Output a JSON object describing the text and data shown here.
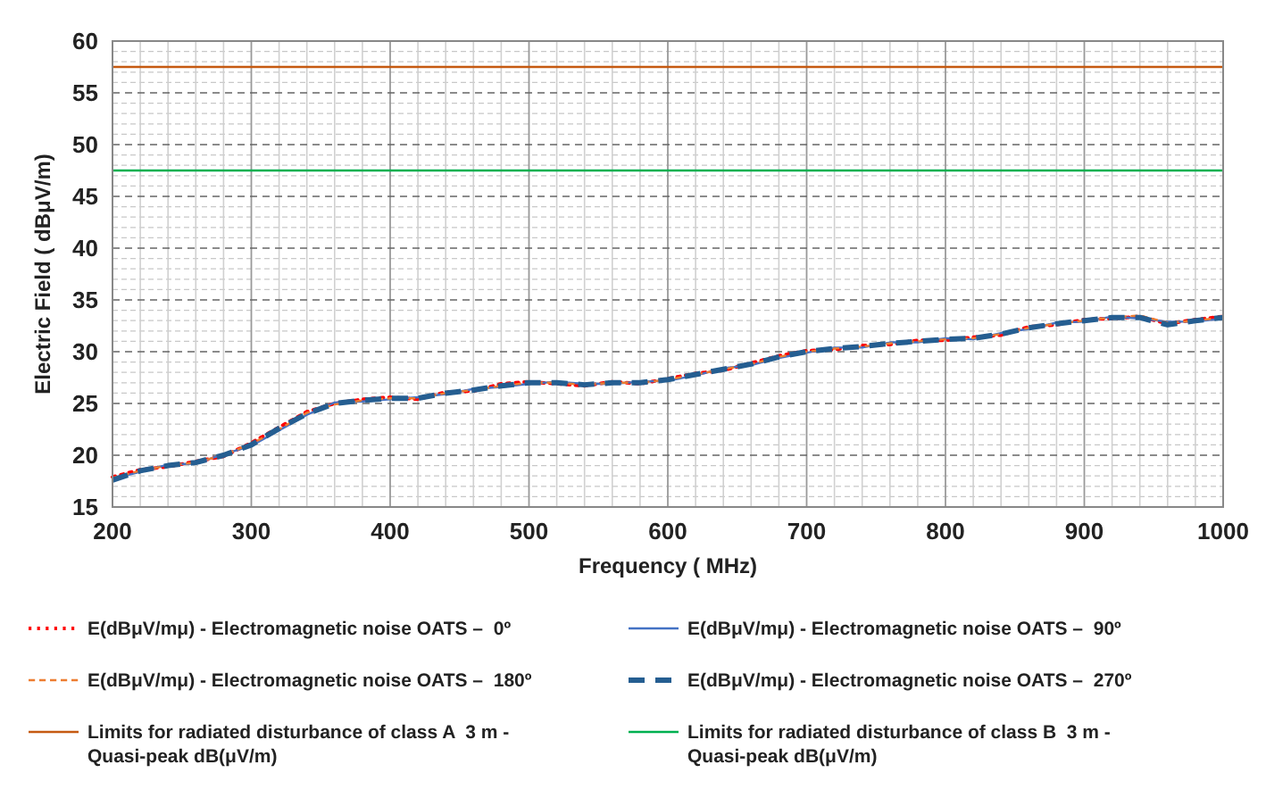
{
  "chart_data": {
    "type": "line",
    "xlabel": "Frequency ( MHz)",
    "ylabel": "Electric Field ( dBμV/m)",
    "x": [
      200,
      220,
      240,
      260,
      280,
      300,
      320,
      340,
      360,
      380,
      400,
      420,
      440,
      460,
      480,
      500,
      520,
      540,
      560,
      580,
      600,
      620,
      640,
      660,
      680,
      700,
      720,
      740,
      760,
      780,
      800,
      820,
      840,
      860,
      880,
      900,
      920,
      940,
      960,
      980,
      1000
    ],
    "xlim": [
      200,
      1000
    ],
    "ylim": [
      15,
      60
    ],
    "xticks": [
      200,
      300,
      400,
      500,
      600,
      700,
      800,
      900,
      1000
    ],
    "yticks": [
      15,
      20,
      25,
      30,
      35,
      40,
      45,
      50,
      55,
      60
    ],
    "grid": true,
    "legend": "bottom",
    "series": [
      {
        "name": "E(dBμV/mμ) - Electromagnetic noise OATS –  0º",
        "color": "#ff0000",
        "line_style": "dotted",
        "values": [
          17.9,
          18.6,
          18.9,
          19.4,
          19.9,
          21.2,
          22.7,
          24.2,
          25.0,
          25.4,
          25.6,
          25.4,
          26.1,
          26.2,
          26.9,
          27.1,
          26.9,
          26.7,
          27.1,
          26.9,
          27.4,
          27.9,
          28.2,
          28.9,
          29.6,
          30.1,
          30.2,
          30.6,
          30.7,
          31.1,
          31.1,
          31.4,
          31.6,
          32.4,
          32.6,
          33.1,
          33.2,
          33.4,
          32.7,
          33.1,
          33.4
        ]
      },
      {
        "name": "E(dBμV/mμ) - Electromagnetic noise OATS –  90º",
        "color": "#4472c4",
        "line_style": "solid",
        "values": [
          17.7,
          18.4,
          19.1,
          19.2,
          20.1,
          20.9,
          22.4,
          23.9,
          25.1,
          25.2,
          25.4,
          25.6,
          25.9,
          26.4,
          26.6,
          26.9,
          27.1,
          26.9,
          26.9,
          27.1,
          27.2,
          27.7,
          28.4,
          28.7,
          29.4,
          29.9,
          30.4,
          30.4,
          30.9,
          30.9,
          31.3,
          31.2,
          31.8,
          32.2,
          32.8,
          32.9,
          33.4,
          33.2,
          32.9,
          32.9,
          33.2
        ]
      },
      {
        "name": "E(dBμV/mμ) - Electromagnetic noise OATS –  180º",
        "color": "#ed7d31",
        "line_style": "dashed",
        "values": [
          17.8,
          18.5,
          19.0,
          19.3,
          20.0,
          21.1,
          22.5,
          24.1,
          24.9,
          25.3,
          25.5,
          25.5,
          26.0,
          26.3,
          26.7,
          27.0,
          27.0,
          26.8,
          27.0,
          27.0,
          27.3,
          27.8,
          28.3,
          28.8,
          29.5,
          30.0,
          30.3,
          30.5,
          30.8,
          31.0,
          31.2,
          31.3,
          31.7,
          32.3,
          32.7,
          33.0,
          33.3,
          33.5,
          32.8,
          33.0,
          33.3
        ]
      },
      {
        "name": "E(dBμV/mμ) - Electromagnetic noise OATS –  270º",
        "color": "#255e91",
        "line_style": "dashed",
        "values": [
          17.6,
          18.5,
          19.0,
          19.3,
          20.0,
          21.0,
          22.6,
          24.0,
          25.0,
          25.3,
          25.5,
          25.5,
          26.0,
          26.3,
          26.7,
          27.0,
          27.0,
          26.8,
          27.0,
          27.0,
          27.3,
          27.8,
          28.3,
          28.8,
          29.5,
          30.0,
          30.3,
          30.5,
          30.8,
          31.0,
          31.2,
          31.3,
          31.7,
          32.3,
          32.7,
          33.0,
          33.3,
          33.3,
          32.6,
          33.0,
          33.3
        ]
      },
      {
        "name": "Limits for radiated disturbance of class A  3 m - Quasi-peak dB(μV/m)",
        "color": "#c55a11",
        "line_style": "solid",
        "values": [
          57.5,
          57.5,
          57.5,
          57.5,
          57.5,
          57.5,
          57.5,
          57.5,
          57.5,
          57.5,
          57.5,
          57.5,
          57.5,
          57.5,
          57.5,
          57.5,
          57.5,
          57.5,
          57.5,
          57.5,
          57.5,
          57.5,
          57.5,
          57.5,
          57.5,
          57.5,
          57.5,
          57.5,
          57.5,
          57.5,
          57.5,
          57.5,
          57.5,
          57.5,
          57.5,
          57.5,
          57.5,
          57.5,
          57.5,
          57.5,
          57.5
        ]
      },
      {
        "name": "Limits for radiated disturbance of class B  3 m - Quasi-peak dB(μV/m)",
        "color": "#00b050",
        "line_style": "solid",
        "values": [
          47.5,
          47.5,
          47.5,
          47.5,
          47.5,
          47.5,
          47.5,
          47.5,
          47.5,
          47.5,
          47.5,
          47.5,
          47.5,
          47.5,
          47.5,
          47.5,
          47.5,
          47.5,
          47.5,
          47.5,
          47.5,
          47.5,
          47.5,
          47.5,
          47.5,
          47.5,
          47.5,
          47.5,
          47.5,
          47.5,
          47.5,
          47.5,
          47.5,
          47.5,
          47.5,
          47.5,
          47.5,
          47.5,
          47.5,
          47.5,
          47.5
        ]
      }
    ]
  }
}
